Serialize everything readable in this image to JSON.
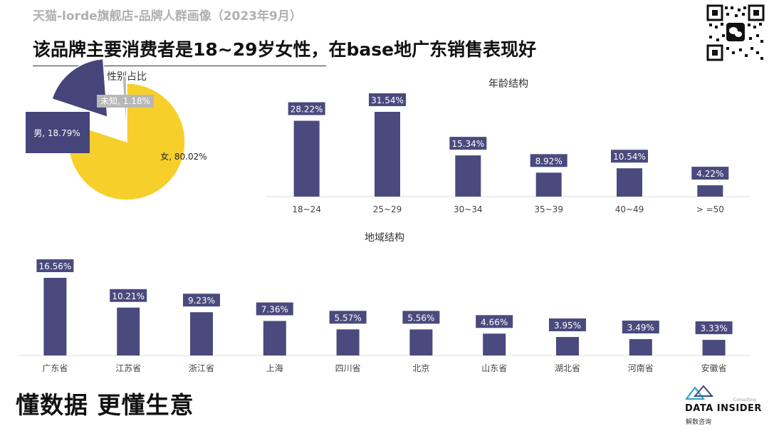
{
  "header": {
    "subtitle": "天猫-lorde旗舰店-品牌人群画像（2023年9月）",
    "headline": "该品牌主要消费者是18~29岁女性，在base地广东销售表现好"
  },
  "footer": {
    "slogan": "懂数据 更懂生意",
    "logo_text": "DATA INSIDER",
    "logo_sub": "解数咨询",
    "logo_tag": "Consulting"
  },
  "colors": {
    "bar": "#4a4a7e",
    "female": "#f7cf2b",
    "male": "#454579",
    "unknown": "#b8b8b8"
  },
  "chart_data": [
    {
      "type": "pie",
      "title": "性别占比",
      "categories": [
        "女",
        "男",
        "未知"
      ],
      "values": [
        80.02,
        18.79,
        1.18
      ],
      "labels": [
        "女, 80.02%",
        "男, 18.79%",
        "未知, 1.18%"
      ]
    },
    {
      "type": "bar",
      "title": "年龄结构",
      "categories": [
        "18~24",
        "25~29",
        "30~34",
        "35~39",
        "40~49",
        "> =50"
      ],
      "values": [
        28.22,
        31.54,
        15.34,
        8.92,
        10.54,
        4.22
      ],
      "labels": [
        "28.22%",
        "31.54%",
        "15.34%",
        "8.92%",
        "10.54%",
        "4.22%"
      ]
    },
    {
      "type": "bar",
      "title": "地域结构",
      "categories": [
        "广东省",
        "江苏省",
        "浙江省",
        "上海",
        "四川省",
        "北京",
        "山东省",
        "湖北省",
        "河南省",
        "安徽省"
      ],
      "values": [
        16.56,
        10.21,
        9.23,
        7.36,
        5.57,
        5.56,
        4.66,
        3.95,
        3.49,
        3.33
      ],
      "labels": [
        "16.56%",
        "10.21%",
        "9.23%",
        "7.36%",
        "5.57%",
        "5.56%",
        "4.66%",
        "3.95%",
        "3.49%",
        "3.33%"
      ]
    }
  ]
}
